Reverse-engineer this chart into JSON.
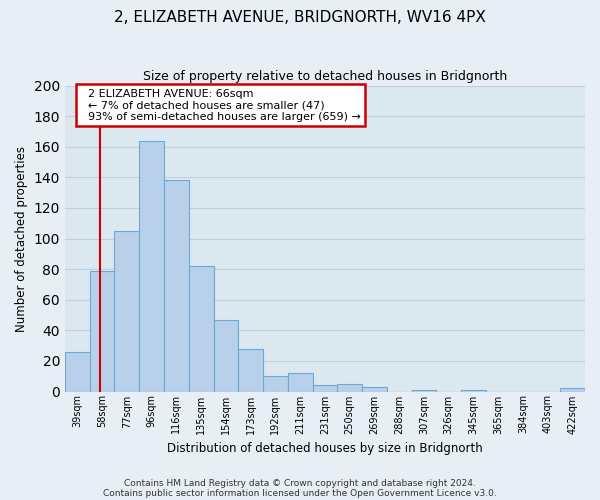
{
  "title": "2, ELIZABETH AVENUE, BRIDGNORTH, WV16 4PX",
  "subtitle": "Size of property relative to detached houses in Bridgnorth",
  "xlabel": "Distribution of detached houses by size in Bridgnorth",
  "ylabel": "Number of detached properties",
  "bar_labels": [
    "39sqm",
    "58sqm",
    "77sqm",
    "96sqm",
    "116sqm",
    "135sqm",
    "154sqm",
    "173sqm",
    "192sqm",
    "211sqm",
    "231sqm",
    "250sqm",
    "269sqm",
    "288sqm",
    "307sqm",
    "326sqm",
    "345sqm",
    "365sqm",
    "384sqm",
    "403sqm",
    "422sqm"
  ],
  "bar_values": [
    26,
    79,
    105,
    164,
    138,
    82,
    47,
    28,
    10,
    12,
    4,
    5,
    3,
    0,
    1,
    0,
    1,
    0,
    0,
    0,
    2
  ],
  "bar_color": "#b8d0ea",
  "bar_edge_color": "#6aaad4",
  "ylim": [
    0,
    200
  ],
  "yticks": [
    0,
    20,
    40,
    60,
    80,
    100,
    120,
    140,
    160,
    180,
    200
  ],
  "property_line_color": "#cc0000",
  "annotation_title": "2 ELIZABETH AVENUE: 66sqm",
  "annotation_line1": "← 7% of detached houses are smaller (47)",
  "annotation_line2": "93% of semi-detached houses are larger (659) →",
  "annotation_box_color": "#ffffff",
  "annotation_box_edge": "#cc0000",
  "footnote1": "Contains HM Land Registry data © Crown copyright and database right 2024.",
  "footnote2": "Contains public sector information licensed under the Open Government Licence v3.0.",
  "bg_color": "#e8eef5",
  "plot_bg_color": "#dce8f0",
  "grid_color": "#c0cfe0"
}
